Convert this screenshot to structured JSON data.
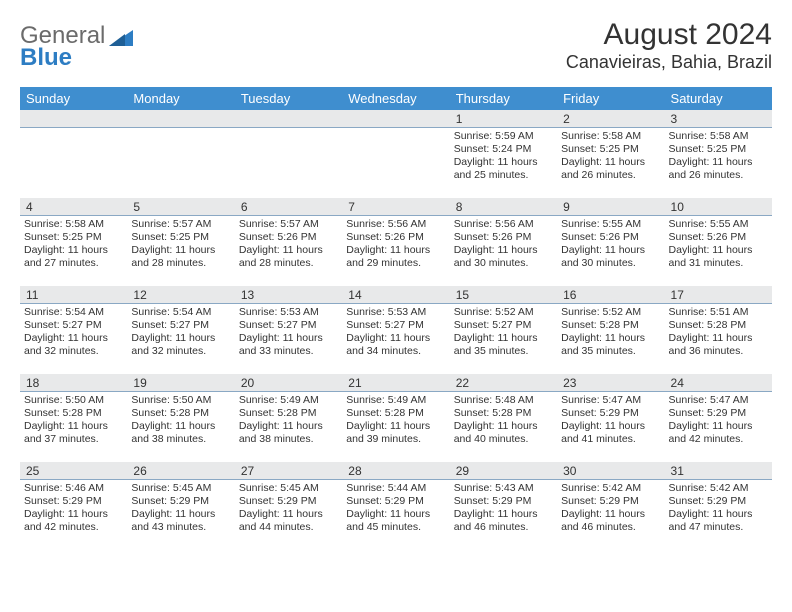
{
  "logo": {
    "word1": "General",
    "word2": "Blue"
  },
  "title": "August 2024",
  "location": "Canavieiras, Bahia, Brazil",
  "colors": {
    "header_bg": "#3f8ecf",
    "header_text": "#ffffff",
    "daynum_bg": "#e8e9ea",
    "cell_rule": "#8aa8c4",
    "text": "#333333",
    "logo_gray": "#6b6b6b",
    "logo_blue": "#2d7dc3",
    "page_bg": "#ffffff"
  },
  "dow": [
    "Sunday",
    "Monday",
    "Tuesday",
    "Wednesday",
    "Thursday",
    "Friday",
    "Saturday"
  ],
  "weeks": [
    [
      {
        "n": "",
        "sr": "",
        "ss": "",
        "dl": ""
      },
      {
        "n": "",
        "sr": "",
        "ss": "",
        "dl": ""
      },
      {
        "n": "",
        "sr": "",
        "ss": "",
        "dl": ""
      },
      {
        "n": "",
        "sr": "",
        "ss": "",
        "dl": ""
      },
      {
        "n": "1",
        "sr": "5:59 AM",
        "ss": "5:24 PM",
        "dl": "11 hours and 25 minutes."
      },
      {
        "n": "2",
        "sr": "5:58 AM",
        "ss": "5:25 PM",
        "dl": "11 hours and 26 minutes."
      },
      {
        "n": "3",
        "sr": "5:58 AM",
        "ss": "5:25 PM",
        "dl": "11 hours and 26 minutes."
      }
    ],
    [
      {
        "n": "4",
        "sr": "5:58 AM",
        "ss": "5:25 PM",
        "dl": "11 hours and 27 minutes."
      },
      {
        "n": "5",
        "sr": "5:57 AM",
        "ss": "5:25 PM",
        "dl": "11 hours and 28 minutes."
      },
      {
        "n": "6",
        "sr": "5:57 AM",
        "ss": "5:26 PM",
        "dl": "11 hours and 28 minutes."
      },
      {
        "n": "7",
        "sr": "5:56 AM",
        "ss": "5:26 PM",
        "dl": "11 hours and 29 minutes."
      },
      {
        "n": "8",
        "sr": "5:56 AM",
        "ss": "5:26 PM",
        "dl": "11 hours and 30 minutes."
      },
      {
        "n": "9",
        "sr": "5:55 AM",
        "ss": "5:26 PM",
        "dl": "11 hours and 30 minutes."
      },
      {
        "n": "10",
        "sr": "5:55 AM",
        "ss": "5:26 PM",
        "dl": "11 hours and 31 minutes."
      }
    ],
    [
      {
        "n": "11",
        "sr": "5:54 AM",
        "ss": "5:27 PM",
        "dl": "11 hours and 32 minutes."
      },
      {
        "n": "12",
        "sr": "5:54 AM",
        "ss": "5:27 PM",
        "dl": "11 hours and 32 minutes."
      },
      {
        "n": "13",
        "sr": "5:53 AM",
        "ss": "5:27 PM",
        "dl": "11 hours and 33 minutes."
      },
      {
        "n": "14",
        "sr": "5:53 AM",
        "ss": "5:27 PM",
        "dl": "11 hours and 34 minutes."
      },
      {
        "n": "15",
        "sr": "5:52 AM",
        "ss": "5:27 PM",
        "dl": "11 hours and 35 minutes."
      },
      {
        "n": "16",
        "sr": "5:52 AM",
        "ss": "5:28 PM",
        "dl": "11 hours and 35 minutes."
      },
      {
        "n": "17",
        "sr": "5:51 AM",
        "ss": "5:28 PM",
        "dl": "11 hours and 36 minutes."
      }
    ],
    [
      {
        "n": "18",
        "sr": "5:50 AM",
        "ss": "5:28 PM",
        "dl": "11 hours and 37 minutes."
      },
      {
        "n": "19",
        "sr": "5:50 AM",
        "ss": "5:28 PM",
        "dl": "11 hours and 38 minutes."
      },
      {
        "n": "20",
        "sr": "5:49 AM",
        "ss": "5:28 PM",
        "dl": "11 hours and 38 minutes."
      },
      {
        "n": "21",
        "sr": "5:49 AM",
        "ss": "5:28 PM",
        "dl": "11 hours and 39 minutes."
      },
      {
        "n": "22",
        "sr": "5:48 AM",
        "ss": "5:28 PM",
        "dl": "11 hours and 40 minutes."
      },
      {
        "n": "23",
        "sr": "5:47 AM",
        "ss": "5:29 PM",
        "dl": "11 hours and 41 minutes."
      },
      {
        "n": "24",
        "sr": "5:47 AM",
        "ss": "5:29 PM",
        "dl": "11 hours and 42 minutes."
      }
    ],
    [
      {
        "n": "25",
        "sr": "5:46 AM",
        "ss": "5:29 PM",
        "dl": "11 hours and 42 minutes."
      },
      {
        "n": "26",
        "sr": "5:45 AM",
        "ss": "5:29 PM",
        "dl": "11 hours and 43 minutes."
      },
      {
        "n": "27",
        "sr": "5:45 AM",
        "ss": "5:29 PM",
        "dl": "11 hours and 44 minutes."
      },
      {
        "n": "28",
        "sr": "5:44 AM",
        "ss": "5:29 PM",
        "dl": "11 hours and 45 minutes."
      },
      {
        "n": "29",
        "sr": "5:43 AM",
        "ss": "5:29 PM",
        "dl": "11 hours and 46 minutes."
      },
      {
        "n": "30",
        "sr": "5:42 AM",
        "ss": "5:29 PM",
        "dl": "11 hours and 46 minutes."
      },
      {
        "n": "31",
        "sr": "5:42 AM",
        "ss": "5:29 PM",
        "dl": "11 hours and 47 minutes."
      }
    ]
  ],
  "labels": {
    "sunrise": "Sunrise:",
    "sunset": "Sunset:",
    "daylight": "Daylight:"
  }
}
